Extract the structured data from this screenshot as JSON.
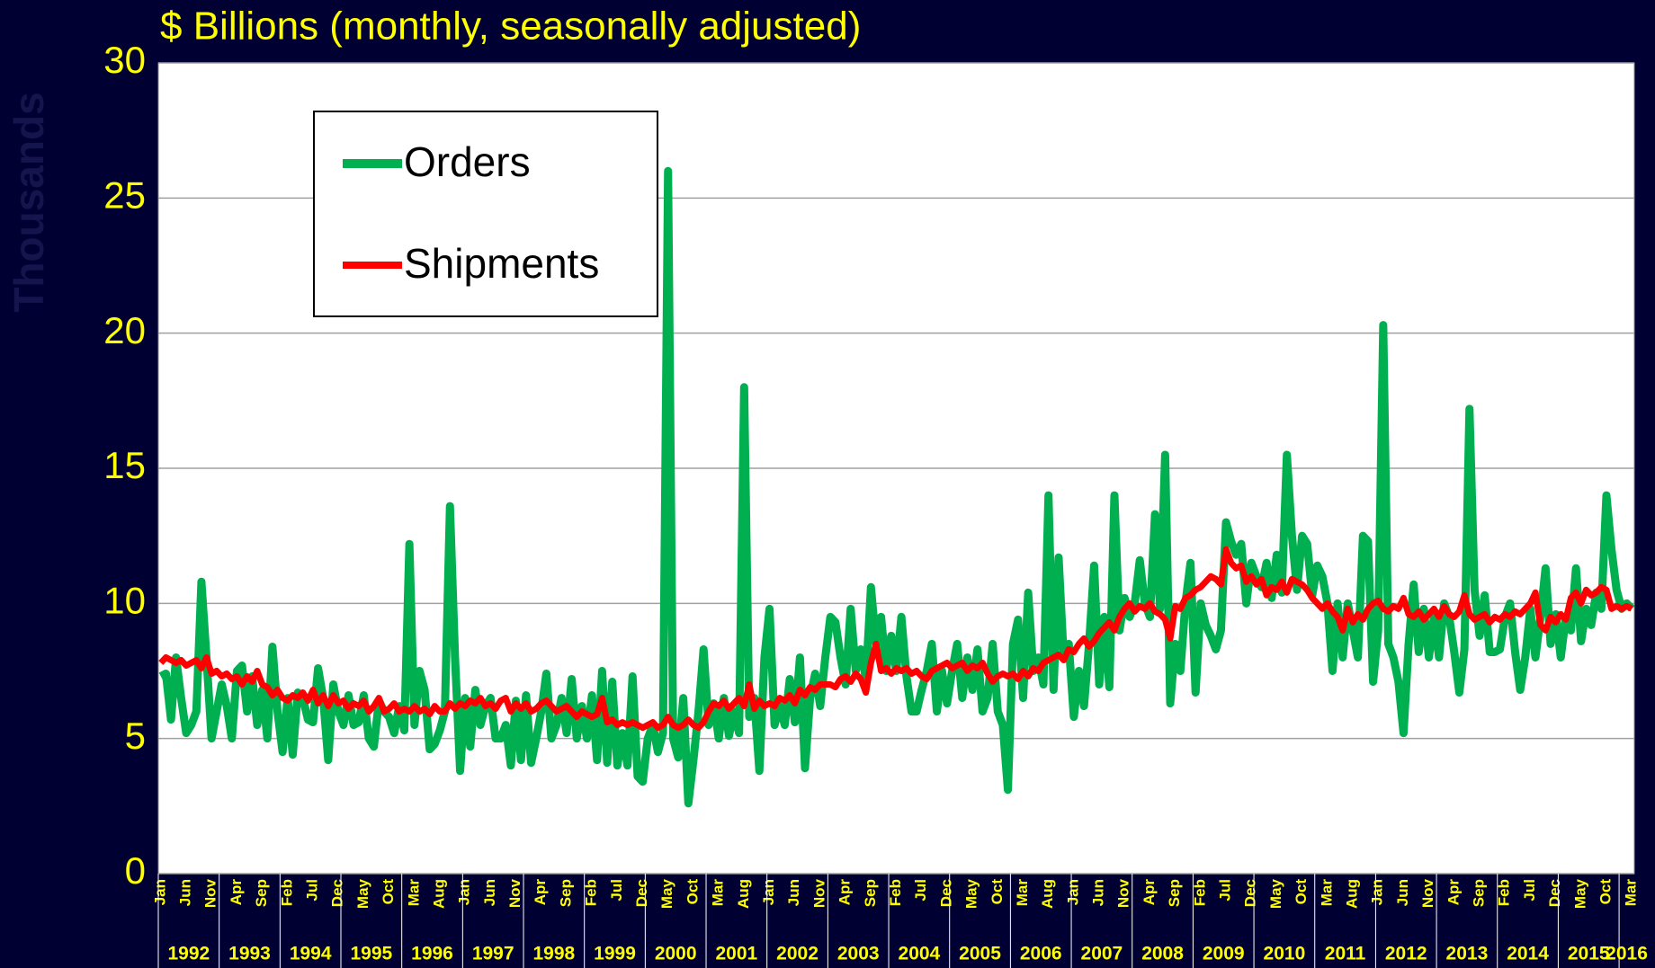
{
  "chart_data": {
    "type": "line",
    "title": "$ Billions (monthly, seasonally adjusted)",
    "y_label": "Thousands",
    "ylim": [
      0,
      30
    ],
    "yticks": [
      0,
      5,
      10,
      15,
      20,
      25,
      30
    ],
    "grid": true,
    "legend": "upper left",
    "categories": [
      "Jan",
      null,
      null,
      null,
      null,
      "Jun",
      null,
      null,
      null,
      null,
      "Nov",
      null,
      null,
      null,
      null,
      "Apr",
      null,
      null,
      null,
      null,
      "Sep",
      null,
      null,
      null,
      null,
      "Feb",
      null,
      null,
      null,
      null,
      "Jul",
      null,
      null,
      null,
      null,
      "Dec",
      null,
      null,
      null,
      null,
      "May",
      null,
      null,
      null,
      null,
      "Oct",
      null,
      null,
      null,
      null,
      "Mar",
      null,
      null,
      null,
      null,
      "Aug",
      null,
      null,
      null,
      null,
      "Jan",
      null,
      null,
      null,
      null,
      "Jun",
      null,
      null,
      null,
      null,
      "Nov",
      null,
      null,
      null,
      null,
      "Apr",
      null,
      null,
      null,
      null,
      "Sep",
      null,
      null,
      null,
      null,
      "Feb",
      null,
      null,
      null,
      null,
      "Jul",
      null,
      null,
      null,
      null,
      "Dec",
      null,
      null,
      null,
      null,
      "May",
      null,
      null,
      null,
      null,
      "Oct",
      null,
      null,
      null,
      null,
      "Mar",
      null,
      null,
      null,
      null,
      "Aug",
      null,
      null,
      null,
      null,
      "Jan",
      null,
      null,
      null,
      null,
      "Jun",
      null,
      null,
      null,
      null,
      "Nov",
      null,
      null,
      null,
      null,
      "Apr",
      null,
      null,
      null,
      null,
      "Sep",
      null,
      null,
      null,
      null,
      "Feb",
      null,
      null,
      null,
      null,
      "Jul",
      null,
      null,
      null,
      null,
      "Dec",
      null,
      null,
      null,
      null,
      "May",
      null,
      null,
      null,
      null,
      "Oct",
      null,
      null,
      null,
      null,
      "Mar",
      null,
      null,
      null,
      null,
      "Aug",
      null,
      null,
      null,
      null,
      "Jan",
      null,
      null,
      null,
      null,
      "Jun",
      null,
      null,
      null,
      null,
      "Nov",
      null,
      null,
      null,
      null,
      "Apr",
      null,
      null,
      null,
      null,
      "Sep",
      null,
      null,
      null,
      null,
      "Feb",
      null,
      null,
      null,
      null,
      "Jul",
      null,
      null,
      null,
      null,
      "Dec",
      null,
      null,
      null,
      null,
      "May",
      null,
      null,
      null,
      null,
      "Oct",
      null,
      null,
      null,
      null,
      "Mar",
      null,
      null,
      null,
      null,
      "Aug",
      null,
      null,
      null,
      null,
      "Jan",
      null,
      null,
      null,
      null,
      "Jun",
      null,
      null,
      null,
      null,
      "Nov",
      null,
      null,
      null,
      null,
      "Apr",
      null,
      null,
      null,
      null,
      "Sep",
      null,
      null,
      null,
      null,
      "Feb",
      null,
      null,
      null,
      null,
      "Jul",
      null,
      null,
      null,
      null,
      "Dec",
      null,
      null,
      null,
      null,
      "May",
      null,
      null,
      null,
      null,
      "Oct",
      null,
      null,
      null,
      null,
      "Mar"
    ],
    "years": [
      "1992",
      "1993",
      "1994",
      "1995",
      "1996",
      "1997",
      "1998",
      "1999",
      "2000",
      "2001",
      "2002",
      "2003",
      "2004",
      "2005",
      "2006",
      "2007",
      "2008",
      "2009",
      "2010",
      "2011",
      "2012",
      "2013",
      "2014",
      "2015",
      "2016"
    ],
    "series": [
      {
        "name": "Orders",
        "color": "#00b050",
        "values": [
          7.3,
          7.4,
          5.7,
          8.0,
          6.5,
          5.2,
          5.5,
          6.0,
          10.8,
          8.0,
          5.0,
          6.0,
          7.0,
          6.2,
          5.0,
          7.5,
          7.7,
          6.0,
          7.3,
          5.5,
          6.8,
          5.0,
          8.4,
          6.0,
          4.5,
          6.5,
          4.4,
          6.7,
          6.5,
          5.7,
          5.6,
          7.6,
          6.5,
          4.2,
          7.0,
          6.0,
          5.5,
          6.6,
          5.5,
          5.6,
          6.6,
          5.0,
          4.7,
          6.4,
          6.0,
          5.8,
          5.2,
          6.2,
          5.3,
          12.2,
          5.5,
          7.5,
          6.8,
          4.6,
          4.8,
          5.3,
          6.0,
          13.6,
          8.0,
          3.8,
          6.5,
          4.7,
          6.8,
          5.5,
          6.2,
          6.5,
          5.0,
          5.0,
          5.5,
          4.0,
          6.4,
          4.2,
          6.6,
          4.1,
          5.0,
          6.0,
          7.4,
          5.0,
          5.5,
          6.5,
          5.2,
          7.2,
          5.0,
          6.2,
          5.0,
          6.6,
          4.2,
          7.5,
          4.1,
          7.1,
          4.0,
          5.2,
          4.0,
          7.3,
          3.6,
          3.4,
          5.0,
          5.5,
          4.5,
          5.2,
          26.0,
          5.0,
          4.3,
          6.5,
          2.6,
          4.2,
          6.0,
          8.3,
          5.5,
          6.3,
          5.0,
          6.5,
          5.1,
          6.0,
          5.2,
          18.0,
          5.8,
          6.5,
          3.8,
          8.0,
          9.8,
          5.5,
          6.2,
          5.5,
          7.2,
          5.6,
          8.0,
          3.9,
          6.5,
          7.4,
          6.2,
          8.0,
          9.5,
          9.3,
          8.0,
          7.0,
          9.8,
          7.5,
          8.3,
          7.2,
          10.6,
          8.5,
          9.5,
          7.5,
          8.8,
          7.5,
          9.5,
          7.3,
          6.0,
          6.0,
          6.8,
          7.5,
          8.5,
          6.0,
          7.5,
          6.3,
          7.5,
          8.5,
          6.5,
          8.0,
          6.8,
          8.3,
          6.0,
          6.5,
          8.5,
          6.0,
          5.5,
          3.1,
          8.5,
          9.4,
          6.5,
          10.4,
          7.5,
          8.0,
          7.0,
          14.0,
          6.8,
          11.7,
          8.0,
          8.5,
          5.8,
          7.5,
          6.2,
          8.5,
          11.4,
          7.0,
          9.5,
          6.9,
          14.0,
          9.0,
          10.2,
          9.5,
          10.0,
          11.6,
          10.0,
          9.5,
          13.3,
          9.8,
          15.5,
          6.3,
          8.5,
          7.5,
          10.0,
          11.5,
          6.7,
          10.0,
          9.2,
          8.8,
          8.3,
          9.0,
          13.0,
          12.3,
          11.8,
          12.2,
          10.0,
          11.5,
          11.0,
          10.6,
          11.5,
          10.2,
          11.8,
          10.4,
          15.5,
          12.5,
          10.5,
          12.5,
          12.2,
          10.3,
          11.4,
          11.0,
          10.0,
          7.5,
          10.0,
          8.0,
          10.0,
          9.0,
          8.0,
          12.5,
          12.3,
          7.1,
          9.0,
          20.3,
          8.5,
          8.0,
          7.1,
          5.2,
          8.5,
          10.7,
          8.2,
          9.8,
          8.0,
          9.5,
          8.0,
          10.0,
          9.5,
          8.2,
          6.7,
          8.3,
          17.2,
          10.5,
          8.8,
          10.3,
          8.2,
          8.2,
          8.3,
          9.5,
          10.0,
          8.2,
          6.8,
          8.0,
          9.8,
          8.0,
          9.5,
          11.3,
          8.5,
          9.6,
          8.0,
          9.5,
          9.0,
          11.3,
          8.6,
          9.8,
          9.2,
          10.4,
          9.8,
          14.0,
          12.0,
          10.5,
          9.8,
          10.0,
          9.8
        ]
      },
      {
        "name": "Shipments",
        "color": "#ff0000",
        "values": [
          7.8,
          8.0,
          7.9,
          7.8,
          7.9,
          7.7,
          7.8,
          7.9,
          7.6,
          8.0,
          7.4,
          7.5,
          7.3,
          7.4,
          7.2,
          7.3,
          7.0,
          7.3,
          7.1,
          7.5,
          7.0,
          6.9,
          6.6,
          6.8,
          6.5,
          6.4,
          6.6,
          6.5,
          6.7,
          6.4,
          6.8,
          6.3,
          6.6,
          6.2,
          6.6,
          6.3,
          6.4,
          6.1,
          6.3,
          6.2,
          6.4,
          6.0,
          6.2,
          6.5,
          6.0,
          6.1,
          6.3,
          6.0,
          6.1,
          6.0,
          6.2,
          6.0,
          6.1,
          5.9,
          6.2,
          6.0,
          6.0,
          6.3,
          6.1,
          6.3,
          6.2,
          6.4,
          6.3,
          6.5,
          6.2,
          6.3,
          6.1,
          6.4,
          6.5,
          6.0,
          6.3,
          6.1,
          6.3,
          6.0,
          6.1,
          6.3,
          6.4,
          6.2,
          6.0,
          6.1,
          6.2,
          6.0,
          5.8,
          6.0,
          5.9,
          5.8,
          5.9,
          6.5,
          5.6,
          5.7,
          5.5,
          5.6,
          5.5,
          5.6,
          5.5,
          5.4,
          5.5,
          5.6,
          5.4,
          5.5,
          5.8,
          5.5,
          5.4,
          5.5,
          5.7,
          5.5,
          5.4,
          5.6,
          6.0,
          6.3,
          6.2,
          6.4,
          6.1,
          6.3,
          6.5,
          6.2,
          7.0,
          6.1,
          6.4,
          6.2,
          6.3,
          6.2,
          6.5,
          6.4,
          6.6,
          6.3,
          6.8,
          6.6,
          6.9,
          6.8,
          7.0,
          7.0,
          7.0,
          6.9,
          7.2,
          7.3,
          7.1,
          7.4,
          7.2,
          6.7,
          7.8,
          8.5,
          7.5,
          7.6,
          7.4,
          7.6,
          7.5,
          7.6,
          7.4,
          7.5,
          7.3,
          7.2,
          7.5,
          7.6,
          7.7,
          7.8,
          7.6,
          7.7,
          7.8,
          7.5,
          7.7,
          7.6,
          7.8,
          7.4,
          7.1,
          7.3,
          7.4,
          7.3,
          7.4,
          7.2,
          7.5,
          7.3,
          7.6,
          7.5,
          7.8,
          7.9,
          8.0,
          8.1,
          7.9,
          8.3,
          8.2,
          8.5,
          8.7,
          8.4,
          8.6,
          8.9,
          9.1,
          9.3,
          9.0,
          9.5,
          9.8,
          10.0,
          9.7,
          9.9,
          9.8,
          10.0,
          9.7,
          9.6,
          9.4,
          8.7,
          9.9,
          9.8,
          10.2,
          10.3,
          10.5,
          10.6,
          10.8,
          11.0,
          10.9,
          10.7,
          12.0,
          11.5,
          11.3,
          11.4,
          10.8,
          11.0,
          10.7,
          10.9,
          10.3,
          10.6,
          10.5,
          10.8,
          10.4,
          10.9,
          10.8,
          10.7,
          10.5,
          10.2,
          10.0,
          9.8,
          10.0,
          9.7,
          9.5,
          9.0,
          9.8,
          9.3,
          9.6,
          9.4,
          9.8,
          10.0,
          10.1,
          9.8,
          9.7,
          9.9,
          9.8,
          10.2,
          9.6,
          9.5,
          9.7,
          9.4,
          9.6,
          9.8,
          9.5,
          9.9,
          9.6,
          9.5,
          9.7,
          10.3,
          9.6,
          9.4,
          9.5,
          9.6,
          9.3,
          9.5,
          9.4,
          9.6,
          9.5,
          9.7,
          9.6,
          9.8,
          10.0,
          10.4,
          9.2,
          9.0,
          9.5,
          9.3,
          9.6,
          9.4,
          10.2,
          10.4,
          10.0,
          10.5,
          10.3,
          10.4,
          10.6,
          10.5,
          9.8,
          9.9,
          9.8,
          9.9,
          9.8
        ]
      }
    ]
  }
}
